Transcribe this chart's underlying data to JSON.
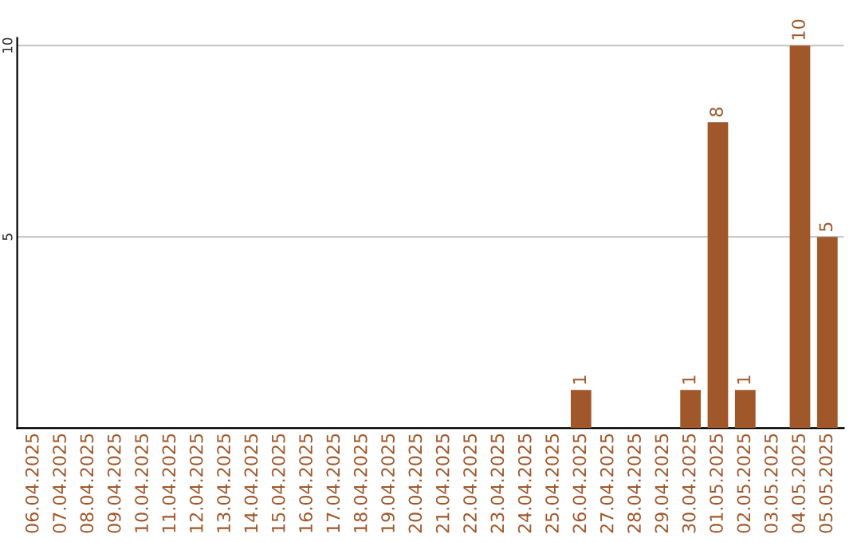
{
  "chart_data": {
    "type": "bar",
    "categories": [
      "06.04.2025",
      "07.04.2025",
      "08.04.2025",
      "09.04.2025",
      "10.04.2025",
      "11.04.2025",
      "12.04.2025",
      "13.04.2025",
      "14.04.2025",
      "15.04.2025",
      "16.04.2025",
      "17.04.2025",
      "18.04.2025",
      "19.04.2025",
      "20.04.2025",
      "21.04.2025",
      "22.04.2025",
      "23.04.2025",
      "24.04.2025",
      "25.04.2025",
      "26.04.2025",
      "27.04.2025",
      "28.04.2025",
      "29.04.2025",
      "30.04.2025",
      "01.05.2025",
      "02.05.2025",
      "03.05.2025",
      "04.05.2025",
      "05.05.2025"
    ],
    "values": [
      0,
      0,
      0,
      0,
      0,
      0,
      0,
      0,
      0,
      0,
      0,
      0,
      0,
      0,
      0,
      0,
      0,
      0,
      0,
      0,
      1,
      0,
      0,
      0,
      1,
      8,
      1,
      0,
      10,
      5
    ],
    "value_labels": [
      null,
      null,
      null,
      null,
      null,
      null,
      null,
      null,
      null,
      null,
      null,
      null,
      null,
      null,
      null,
      null,
      null,
      null,
      null,
      null,
      "1",
      null,
      null,
      null,
      "1",
      "8",
      "1",
      null,
      "10",
      "5"
    ],
    "color": "#a0572a",
    "ylim": [
      0,
      10.2
    ],
    "yticks": [
      5,
      10
    ],
    "grid": "y"
  }
}
